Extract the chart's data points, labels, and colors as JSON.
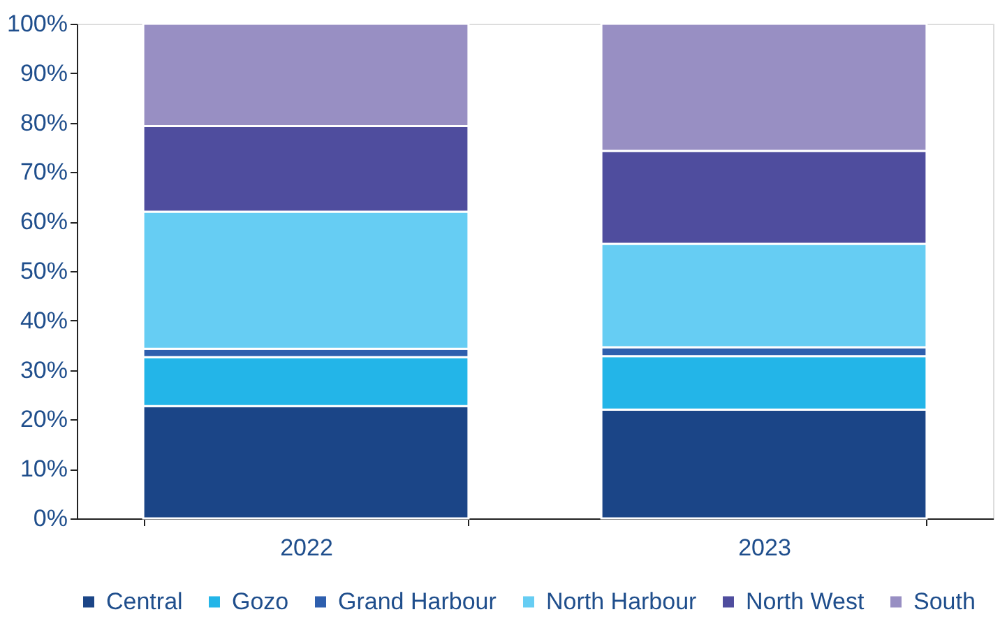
{
  "chart_data": {
    "type": "bar",
    "stacked": true,
    "categories": [
      "2022",
      "2023"
    ],
    "series": [
      {
        "name": "Central",
        "color": "#1b4587",
        "values": [
          22.7,
          22.0
        ]
      },
      {
        "name": "Gozo",
        "color": "#23b5e8",
        "values": [
          9.9,
          10.8
        ]
      },
      {
        "name": "Grand Harbour",
        "color": "#2e5fae",
        "values": [
          1.7,
          1.8
        ]
      },
      {
        "name": "North Harbour",
        "color": "#66cdf3",
        "values": [
          27.7,
          20.9
        ]
      },
      {
        "name": "North West",
        "color": "#4f4d9e",
        "values": [
          17.3,
          18.8
        ]
      },
      {
        "name": "South",
        "color": "#988fc3",
        "values": [
          20.7,
          25.7
        ]
      }
    ],
    "ylim": [
      0,
      100
    ],
    "yticks": [
      {
        "value": 0,
        "label": "0%"
      },
      {
        "value": 10,
        "label": "10%"
      },
      {
        "value": 20,
        "label": "20%"
      },
      {
        "value": 30,
        "label": "30%"
      },
      {
        "value": 40,
        "label": "40%"
      },
      {
        "value": 50,
        "label": "50%"
      },
      {
        "value": 60,
        "label": "60%"
      },
      {
        "value": 70,
        "label": "70%"
      },
      {
        "value": 80,
        "label": "80%"
      },
      {
        "value": 90,
        "label": "90%"
      },
      {
        "value": 100,
        "label": "100%"
      }
    ],
    "grid": false,
    "legend": "bottom"
  }
}
